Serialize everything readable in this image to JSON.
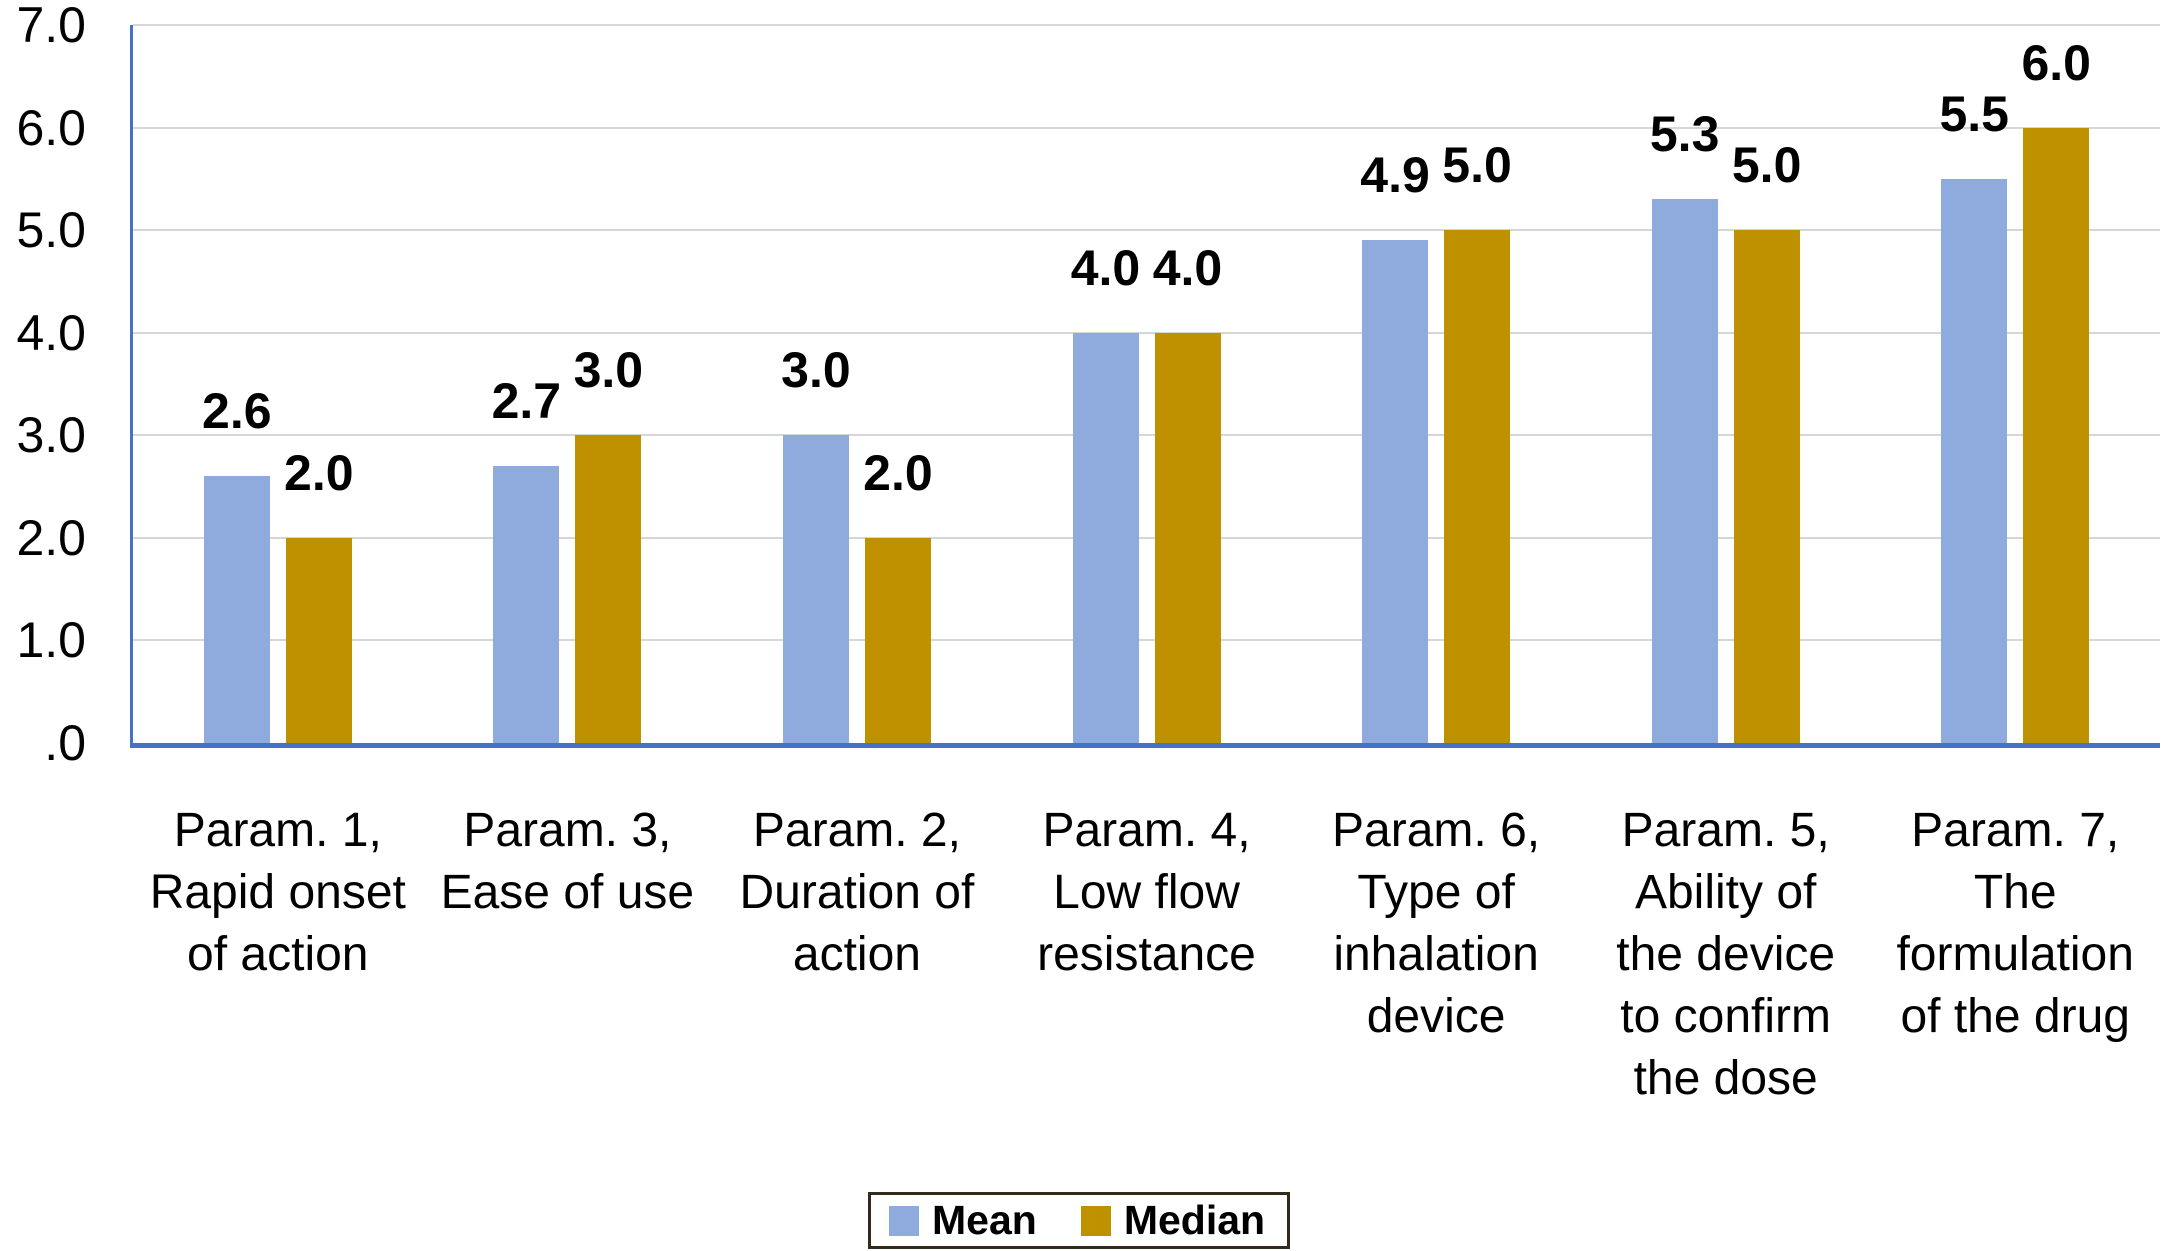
{
  "chart_data": {
    "type": "bar",
    "title": "",
    "categories": [
      "Param. 1,\nRapid onset\nof action",
      "Param. 3,\nEase of use",
      "Param. 2,\nDuration of\naction",
      "Param. 4,\nLow flow\nresistance",
      "Param. 6,\nType of\ninhalation\ndevice",
      "Param. 5,\nAbility of\nthe device\nto confirm\nthe dose",
      "Param. 7,\nThe\nformulation\nof the drug"
    ],
    "series": [
      {
        "name": "Mean",
        "color": "#8FAADC",
        "values": [
          2.6,
          2.7,
          3.0,
          4.0,
          4.9,
          5.3,
          5.5
        ]
      },
      {
        "name": "Median",
        "color": "#BF9000",
        "values": [
          2.0,
          3.0,
          2.0,
          4.0,
          5.0,
          5.0,
          6.0
        ]
      }
    ],
    "data_labels": {
      "Mean": [
        "2.6",
        "2.7",
        "3.0",
        "4.0",
        "4.9",
        "5.3",
        "5.5"
      ],
      "Median": [
        "2.0",
        "3.0",
        "2.0",
        "4.0",
        "5.0",
        "5.0",
        "6.0"
      ]
    },
    "y_ticks": [
      "7.0",
      "6.0",
      "5.0",
      "4.0",
      "3.0",
      "2.0",
      "1.0",
      ".0"
    ],
    "ylim": [
      0,
      7
    ],
    "xlabel": "",
    "ylabel": "",
    "grid": true,
    "legend_position": "bottom",
    "colors": {
      "axis_line": "#4472C4",
      "gridline": "#D6D6D6",
      "data_label": "#000000",
      "tick_label": "#000000",
      "legend_border": "#33291C",
      "background": "#FFFFFF"
    }
  },
  "legend": {
    "items": [
      {
        "label": "Mean",
        "color": "#8FAADC"
      },
      {
        "label": "Median",
        "color": "#BF9000"
      }
    ]
  }
}
